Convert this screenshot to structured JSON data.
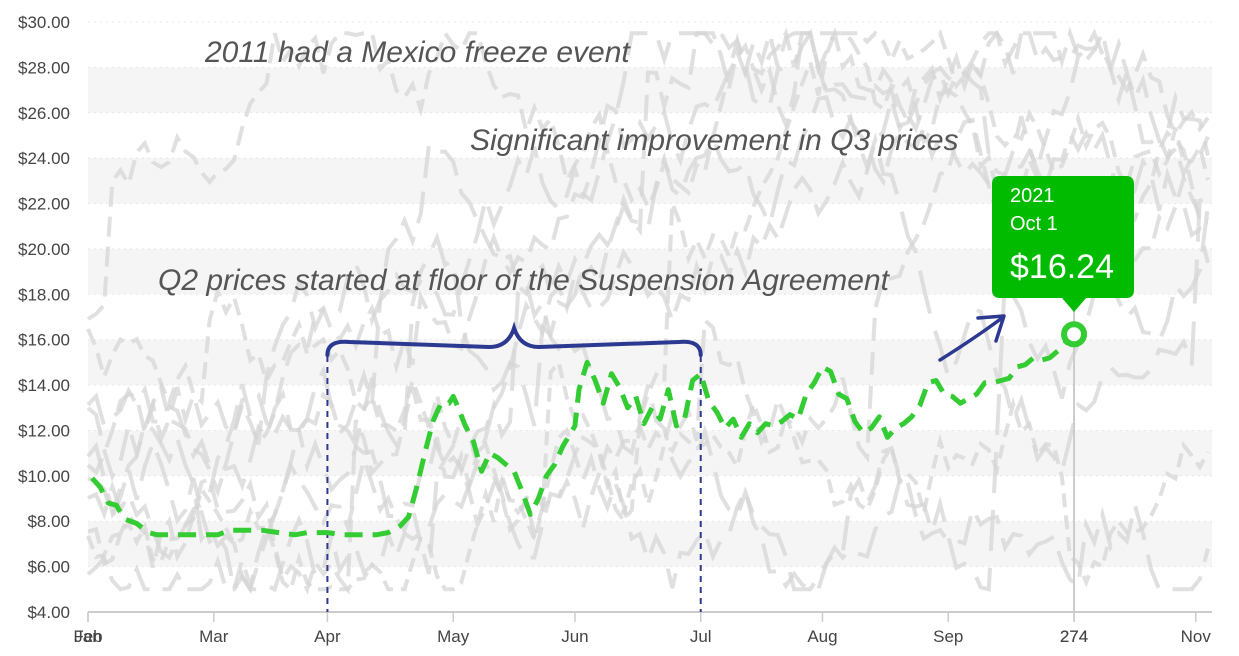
{
  "chart_data": {
    "type": "line",
    "ylim": [
      4,
      30
    ],
    "y_ticks": [
      "$4.00",
      "$6.00",
      "$8.00",
      "$10.00",
      "$12.00",
      "$14.00",
      "$16.00",
      "$18.00",
      "$20.00",
      "$22.00",
      "$24.00",
      "$26.00",
      "$28.00",
      "$30.00"
    ],
    "x_ticks": [
      {
        "day": 1,
        "label": "Jan"
      },
      {
        "day": 1,
        "label": "Feb"
      },
      {
        "day": 32,
        "label": "Mar"
      },
      {
        "day": 60,
        "label": "Apr"
      },
      {
        "day": 91,
        "label": "May"
      },
      {
        "day": 121,
        "label": "Jun"
      },
      {
        "day": 152,
        "label": "Jul"
      },
      {
        "day": 182,
        "label": "Aug"
      },
      {
        "day": 213,
        "label": "Sep"
      },
      {
        "day": 244,
        "label": "274"
      },
      {
        "day": 244,
        "label": "274"
      },
      {
        "day": 274,
        "label": "Nov"
      }
    ],
    "crosshair_day": 244,
    "colors": {
      "highlight": "#33cc33",
      "background_series": "#d6d6d6",
      "annotation": "#2b3990",
      "tooltip": "#00bb00"
    },
    "highlight_series": {
      "year": "2021",
      "x": [
        2,
        4,
        6,
        8,
        10,
        13,
        16,
        18,
        20,
        23,
        26,
        30,
        33,
        36,
        40,
        44,
        48,
        52,
        55,
        58,
        60,
        64,
        68,
        72,
        75,
        78,
        80,
        82,
        84,
        86,
        88,
        90,
        91,
        92,
        94,
        96,
        98,
        100,
        102,
        104,
        106,
        108,
        110,
        112,
        114,
        116,
        118,
        121,
        122,
        124,
        126,
        128,
        130,
        132,
        134,
        136,
        138,
        140,
        142,
        144,
        146,
        148,
        150,
        152,
        154,
        156,
        158,
        160,
        162,
        164,
        166,
        168,
        170,
        172,
        174,
        176,
        178,
        180,
        182,
        184,
        186,
        188,
        190,
        192,
        194,
        196,
        198,
        200,
        202,
        204,
        206,
        208,
        210,
        212,
        214,
        216,
        218,
        220,
        222,
        224,
        226,
        228,
        230,
        232,
        234,
        236,
        238,
        240,
        242,
        244
      ],
      "values": [
        9.9,
        9.5,
        8.8,
        8.7,
        8.1,
        7.9,
        7.5,
        7.4,
        7.4,
        7.4,
        7.4,
        7.4,
        7.4,
        7.6,
        7.6,
        7.6,
        7.5,
        7.4,
        7.5,
        7.5,
        7.5,
        7.4,
        7.4,
        7.4,
        7.5,
        7.8,
        8.2,
        9.5,
        11.0,
        12.4,
        13.2,
        13.2,
        13.5,
        13.1,
        12.2,
        11.5,
        10.2,
        11.0,
        10.8,
        10.5,
        10.2,
        9.3,
        8.3,
        9.0,
        10.0,
        10.5,
        11.3,
        12.2,
        13.8,
        15.0,
        14.2,
        13.2,
        14.5,
        13.9,
        13.0,
        13.5,
        12.3,
        13.0,
        12.5,
        13.8,
        12.2,
        12.5,
        14.2,
        14.5,
        13.3,
        12.8,
        12.1,
        12.5,
        11.7,
        12.3,
        11.9,
        12.3,
        12.2,
        12.4,
        12.7,
        12.5,
        13.6,
        14.1,
        14.8,
        14.6,
        13.6,
        13.4,
        12.4,
        11.9,
        12.1,
        12.6,
        11.7,
        12.1,
        12.3,
        12.6,
        13.1,
        14.1,
        14.2,
        13.6,
        13.5,
        13.2,
        13.4,
        13.6,
        14.1,
        14.1,
        14.2,
        14.3,
        14.8,
        14.9,
        15.2,
        15.1,
        15.2,
        15.5,
        15.9,
        16.24
      ]
    },
    "tooltip": {
      "year": "2021",
      "date": "Oct 1",
      "value": "$16.24"
    },
    "annotations": [
      {
        "text": "2011 had a Mexico freeze event"
      },
      {
        "text": "Significant improvement in Q3 prices"
      },
      {
        "text": "Q2 prices started at floor of the Suspension Agreement"
      }
    ]
  }
}
